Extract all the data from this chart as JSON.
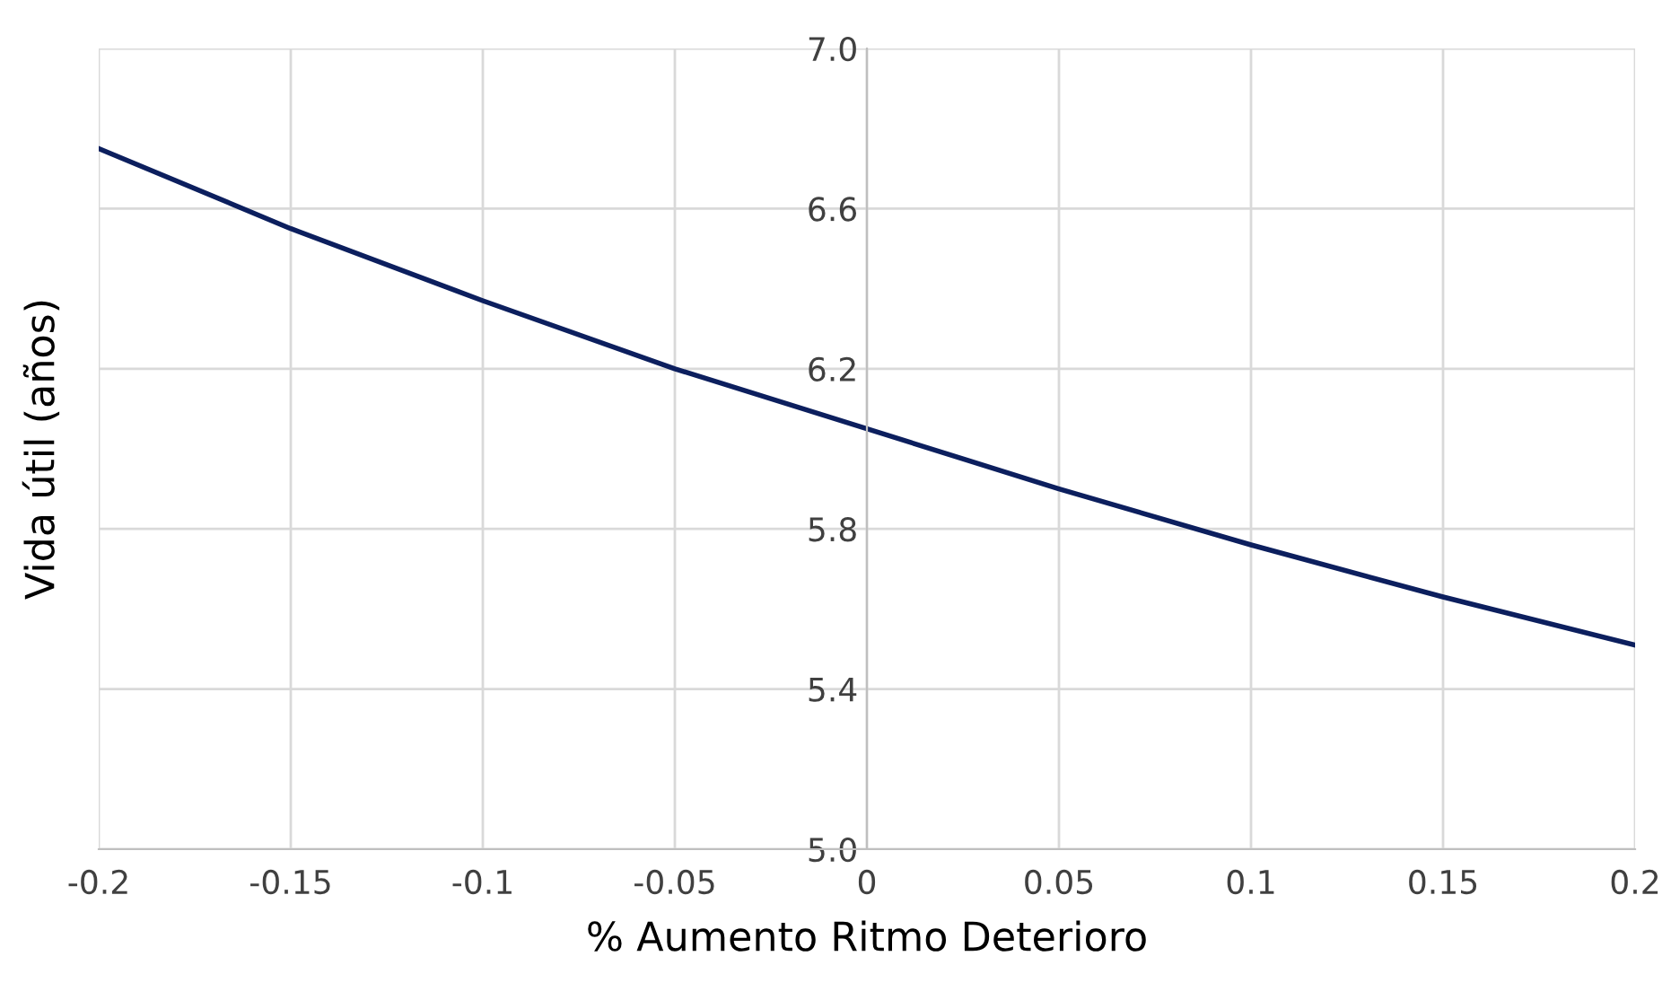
{
  "chart_data": {
    "type": "line",
    "xlabel": "% Aumento Ritmo Deterioro",
    "ylabel": "Vida útil (años)",
    "x": [
      -0.2,
      -0.15,
      -0.1,
      -0.05,
      0,
      0.05,
      0.1,
      0.15,
      0.2
    ],
    "series": [
      {
        "color": "#0c1f5e",
        "values": [
          6.75,
          6.55,
          6.37,
          6.2,
          6.05,
          5.9,
          5.76,
          5.63,
          5.51
        ]
      }
    ],
    "xlim": [
      -0.2,
      0.2
    ],
    "xticks": [
      -0.2,
      -0.15,
      -0.1,
      -0.05,
      0,
      0.05,
      0.1,
      0.15,
      0.2
    ],
    "ylim": [
      5.0,
      7.0
    ],
    "yticks": [
      {
        "value": 5.0,
        "label": "5.0"
      },
      {
        "value": 5.4,
        "label": "5.4"
      },
      {
        "value": 5.8,
        "label": "5.8"
      },
      {
        "value": 6.2,
        "label": "6.2"
      },
      {
        "value": 6.6,
        "label": "6.6"
      },
      {
        "value": 7.0,
        "label": "7.0"
      }
    ],
    "grid": true,
    "marker": "none",
    "line_style": "solid"
  }
}
